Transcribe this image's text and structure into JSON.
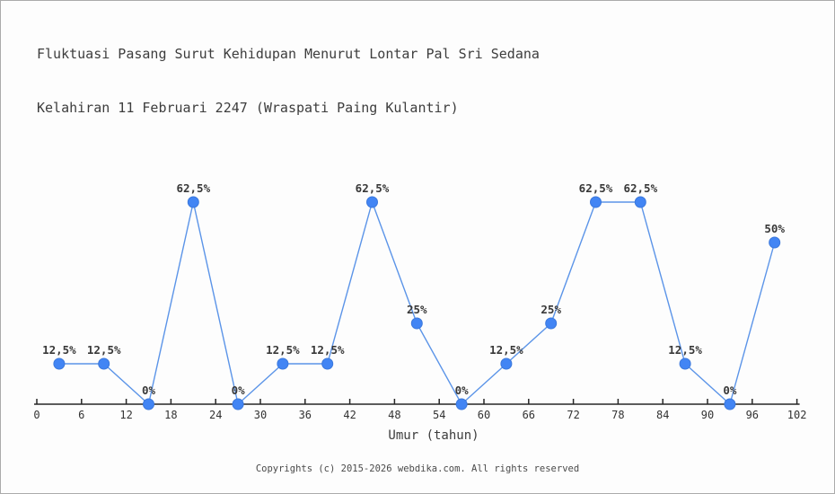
{
  "header": {
    "title_line1": "Fluktuasi Pasang Surut Kehidupan Menurut Lontar Pal Sri Sedana",
    "title_line2": "Kelahiran 11 Februari 2247 (Wraspati Paing Kulantir)"
  },
  "footer": {
    "copyright": "Copyrights (c) 2015-2026 webdika.com. All rights reserved"
  },
  "chart_data": {
    "type": "line",
    "title": "Fluktuasi Pasang Surut Kehidupan Menurut Lontar Pal Sri Sedana Kelahiran 11 Februari 2247 (Wraspati Paing Kulantir)",
    "xlabel": "Umur (tahun)",
    "ylabel": "",
    "x": [
      3,
      9,
      15,
      21,
      27,
      33,
      39,
      45,
      51,
      57,
      63,
      69,
      75,
      81,
      87,
      93,
      99
    ],
    "values": [
      12.5,
      12.5,
      0,
      62.5,
      0,
      12.5,
      12.5,
      62.5,
      25,
      0,
      12.5,
      25,
      62.5,
      62.5,
      12.5,
      0,
      50
    ],
    "point_labels": [
      "12,5%",
      "12,5%",
      "0%",
      "62,5%",
      "0%",
      "12,5%",
      "12,5%",
      "62,5%",
      "25%",
      "0%",
      "12,5%",
      "25%",
      "62,5%",
      "62,5%",
      "12,5%",
      "0%",
      "50%"
    ],
    "x_ticks": [
      0,
      6,
      12,
      18,
      24,
      30,
      36,
      42,
      48,
      54,
      60,
      66,
      72,
      78,
      84,
      90,
      96,
      102
    ],
    "xlim": [
      0,
      102
    ],
    "ylim": [
      0,
      100
    ],
    "grid": false,
    "legend": null,
    "colors": {
      "line": "#5b94e8",
      "marker": "#4285f4",
      "marker_edge": "#3b78dc",
      "axis": "#262626",
      "label": "#383838"
    }
  }
}
